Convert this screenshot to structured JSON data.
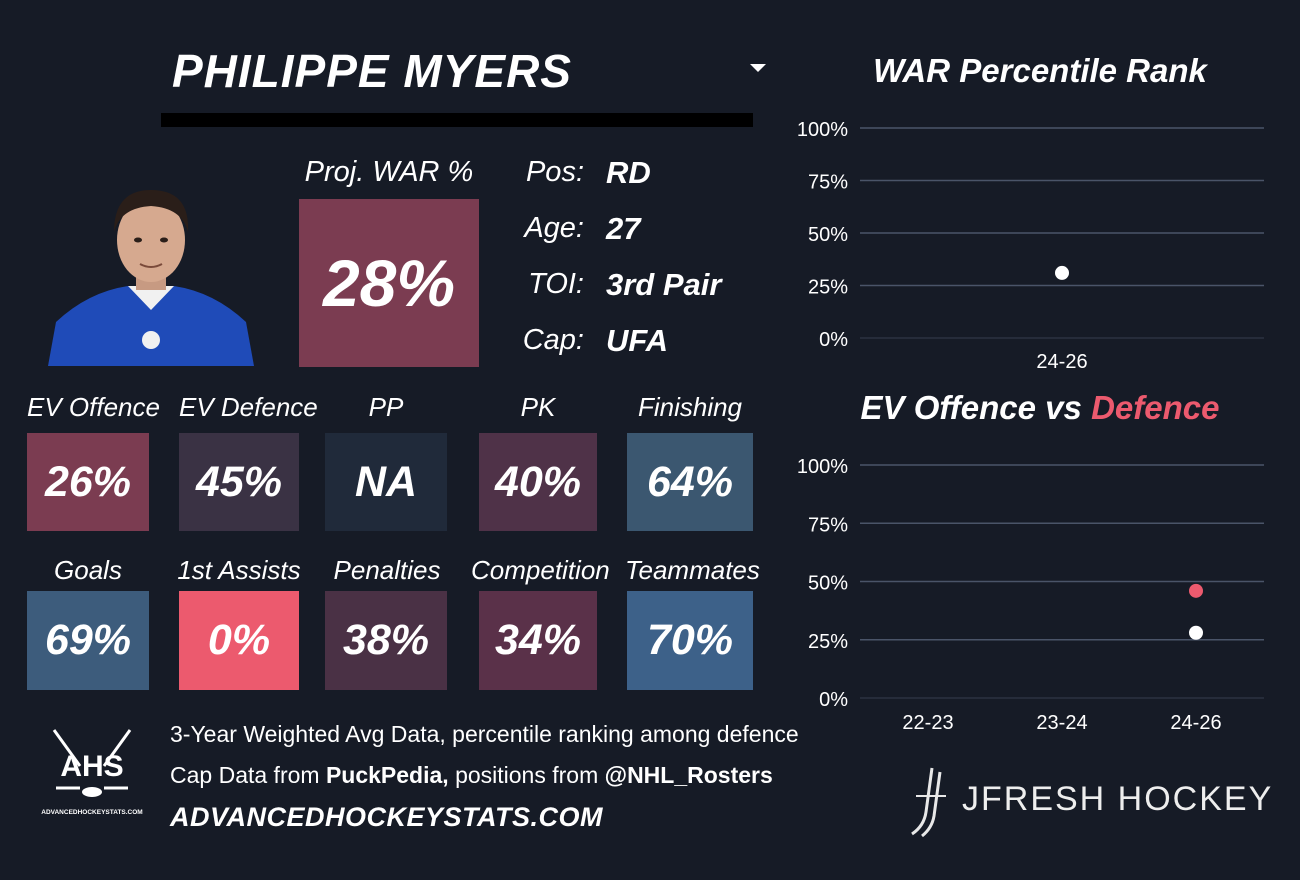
{
  "player": {
    "name": "PHILIPPE MYERS"
  },
  "proj": {
    "label": "Proj. WAR %",
    "value": "28%",
    "color": "#7b3c51"
  },
  "info": [
    {
      "label": "Pos:",
      "value": "RD"
    },
    {
      "label": "Age:",
      "value": "27"
    },
    {
      "label": "TOI:",
      "value": "3rd Pair"
    },
    {
      "label": "Cap:",
      "value": "UFA"
    }
  ],
  "metrics_row1": [
    {
      "label": "EV Offence",
      "value": "26%",
      "color": "#7b3c51"
    },
    {
      "label": "EV Defence",
      "value": "45%",
      "color": "#3a3244"
    },
    {
      "label": "PP",
      "value": "NA",
      "color": "#202a3a"
    },
    {
      "label": "PK",
      "value": "40%",
      "color": "#4f3248"
    },
    {
      "label": "Finishing",
      "value": "64%",
      "color": "#3b5770"
    }
  ],
  "metrics_row2": [
    {
      "label": "Goals",
      "value": "69%",
      "color": "#3d5c7c"
    },
    {
      "label": "1st Assists",
      "value": "0%",
      "color": "#ec5a6e"
    },
    {
      "label": "Penalties",
      "value": "38%",
      "color": "#4a3145"
    },
    {
      "label": "Competition",
      "value": "34%",
      "color": "#5a3149"
    },
    {
      "label": "Teammates",
      "value": "70%",
      "color": "#3d6189"
    }
  ],
  "footer": {
    "line1": "3-Year Weighted Avg Data, percentile ranking among defence",
    "line2_prefix": "Cap Data from ",
    "line2_bold1": "PuckPedia,",
    "line2_mid": " positions from ",
    "line2_bold2": "@NHL_Rosters",
    "site": "ADVANCEDHOCKEYSTATS.COM",
    "logo_text": "AHS",
    "logo_sub": "ADVANCEDHOCKEYSTATS.COM",
    "brand": "JFRESH HOCKEY"
  },
  "chart_data": [
    {
      "type": "scatter",
      "title": "WAR Percentile Rank",
      "categories": [
        "24-26"
      ],
      "yticks": [
        "100%",
        "75%",
        "50%",
        "25%",
        "0%"
      ],
      "ylim": [
        0,
        100
      ],
      "series": [
        {
          "color": "#ffffff",
          "values": [
            31
          ]
        }
      ],
      "grid": true
    },
    {
      "type": "scatter",
      "title_prefix": "EV Offence vs ",
      "title_suffix": "Defence",
      "title_suffix_color": "#ec5a6e",
      "categories": [
        "22-23",
        "23-24",
        "24-26"
      ],
      "yticks": [
        "100%",
        "75%",
        "50%",
        "25%",
        "0%"
      ],
      "ylim": [
        0,
        100
      ],
      "series": [
        {
          "color": "#ffffff",
          "values": [
            null,
            null,
            28
          ]
        },
        {
          "color": "#ec5a6e",
          "values": [
            null,
            null,
            46
          ]
        }
      ],
      "grid": true
    }
  ]
}
